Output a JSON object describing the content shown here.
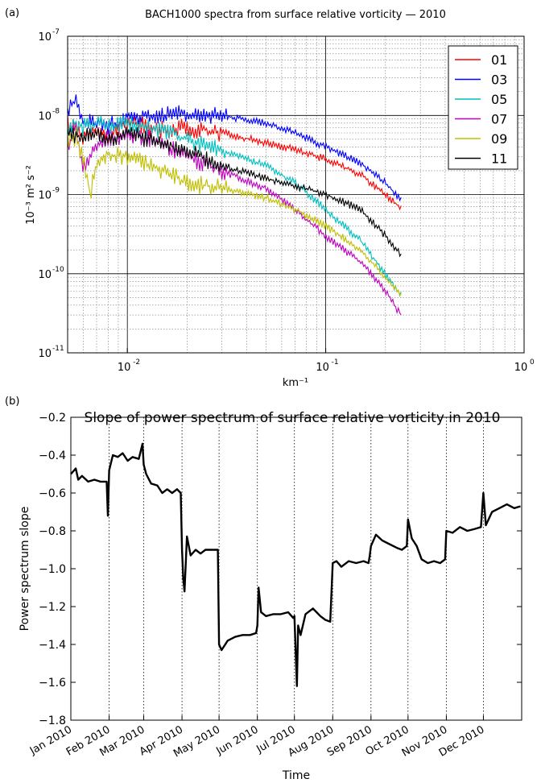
{
  "chart_data": [
    {
      "panel_label": "(a)",
      "type": "line",
      "title": "BACH1000 spectra from surface relative vorticity — 2010",
      "xlabel": "km⁻¹",
      "ylabel": "10⁻³ m² s⁻²",
      "xscale": "log",
      "yscale": "log",
      "xlim": [
        0.005,
        1.0
      ],
      "ylim": [
        1e-11,
        1e-07
      ],
      "xtick_labels": [
        {
          "base": "10",
          "exp": "-2",
          "value": 0.01
        },
        {
          "base": "10",
          "exp": "-1",
          "value": 0.1
        },
        {
          "base": "10",
          "exp": "0",
          "value": 1.0
        }
      ],
      "ytick_labels": [
        {
          "base": "10",
          "exp": "-11",
          "value": 1e-11
        },
        {
          "base": "10",
          "exp": "-10",
          "value": 1e-10
        },
        {
          "base": "10",
          "exp": "-9",
          "value": 1e-09
        },
        {
          "base": "10",
          "exp": "-8",
          "value": 1e-08
        },
        {
          "base": "10",
          "exp": "-7",
          "value": 1e-07
        }
      ],
      "grid": true,
      "legend_position": "top-right",
      "series": [
        {
          "name": "01",
          "color": "#ff0000",
          "k": [
            0.005,
            0.006,
            0.007,
            0.008,
            0.01,
            0.015,
            0.02,
            0.03,
            0.05,
            0.07,
            0.1,
            0.15,
            0.2,
            0.24
          ],
          "values": [
            8e-09,
            5.5e-09,
            7e-09,
            5e-09,
            8.5e-09,
            6.5e-09,
            7e-09,
            6e-09,
            4.5e-09,
            3.7e-09,
            2.8e-09,
            1.8e-09,
            1e-09,
            6.8e-10
          ]
        },
        {
          "name": "03",
          "color": "#0000ff",
          "k": [
            0.005,
            0.0055,
            0.006,
            0.007,
            0.008,
            0.01,
            0.015,
            0.02,
            0.03,
            0.05,
            0.07,
            0.1,
            0.15,
            0.2,
            0.24
          ],
          "values": [
            1.2e-08,
            1.5e-08,
            8.5e-09,
            8e-09,
            7.5e-09,
            9.5e-09,
            1e-08,
            1.05e-08,
            1e-08,
            8e-09,
            6e-09,
            4e-09,
            2.5e-09,
            1.4e-09,
            8.5e-10
          ]
        },
        {
          "name": "05",
          "color": "#00bfbf",
          "k": [
            0.005,
            0.0055,
            0.006,
            0.007,
            0.008,
            0.01,
            0.015,
            0.02,
            0.03,
            0.05,
            0.07,
            0.1,
            0.15,
            0.2,
            0.24
          ],
          "values": [
            7e-09,
            8e-09,
            7e-09,
            8e-09,
            7.5e-09,
            8e-09,
            6.5e-09,
            5e-09,
            3.5e-09,
            2.3e-09,
            1.4e-09,
            6.5e-10,
            2.6e-10,
            1e-10,
            5.3e-11
          ]
        },
        {
          "name": "07",
          "color": "#bf00bf",
          "k": [
            0.005,
            0.0055,
            0.006,
            0.007,
            0.008,
            0.01,
            0.015,
            0.02,
            0.03,
            0.05,
            0.07,
            0.1,
            0.15,
            0.2,
            0.24
          ],
          "values": [
            4e-09,
            7e-09,
            2e-09,
            4.5e-09,
            5e-09,
            6e-09,
            4.5e-09,
            3e-09,
            2e-09,
            1.2e-09,
            6.5e-10,
            3e-10,
            1.4e-10,
            6e-11,
            3e-11
          ]
        },
        {
          "name": "09",
          "color": "#bfbf00",
          "k": [
            0.005,
            0.0055,
            0.006,
            0.0065,
            0.007,
            0.008,
            0.01,
            0.015,
            0.02,
            0.03,
            0.05,
            0.07,
            0.1,
            0.15,
            0.2,
            0.24
          ],
          "values": [
            4.5e-09,
            5.5e-09,
            3e-09,
            1e-09,
            2.5e-09,
            3.2e-09,
            3e-09,
            2e-09,
            1.4e-09,
            1.2e-09,
            9e-10,
            6.5e-10,
            4e-10,
            2e-10,
            9e-11,
            5.5e-11
          ]
        },
        {
          "name": "11",
          "color": "#000000",
          "k": [
            0.005,
            0.006,
            0.007,
            0.008,
            0.01,
            0.015,
            0.02,
            0.03,
            0.05,
            0.07,
            0.1,
            0.15,
            0.2,
            0.24
          ],
          "values": [
            6.5e-09,
            5e-09,
            6e-09,
            5e-09,
            6e-09,
            4.5e-09,
            3.5e-09,
            2.3e-09,
            1.6e-09,
            1.3e-09,
            1e-09,
            6.5e-10,
            3e-10,
            1.7e-10
          ]
        }
      ]
    },
    {
      "panel_label": "(b)",
      "type": "line",
      "title": "Slope of power spectrum of surface relative vorticity in 2010",
      "xlabel": "Time",
      "ylabel": "Power spectrum slope",
      "ylim": [
        -1.8,
        -0.2
      ],
      "y_ticks": [
        -1.8,
        -1.6,
        -1.4,
        -1.2,
        -1.0,
        -0.8,
        -0.6,
        -0.4,
        -0.2
      ],
      "xlim": [
        "2010-01-01",
        "2011-01-01"
      ],
      "x_tick_labels": [
        "Jan 2010",
        "Feb 2010",
        "Mar 2010",
        "Apr 2010",
        "May 2010",
        "Jun 2010",
        "Jul 2010",
        "Aug 2010",
        "Sep 2010",
        "Oct 2010",
        "Nov 2010",
        "Dec 2010"
      ],
      "x_tick_dates": [
        "2010-01-01",
        "2010-02-01",
        "2010-03-01",
        "2010-04-01",
        "2010-05-01",
        "2010-06-01",
        "2010-07-01",
        "2010-08-01",
        "2010-09-01",
        "2010-10-01",
        "2010-11-01",
        "2010-12-01"
      ],
      "grid": "vertical dotted",
      "series": [
        {
          "color": "#000000",
          "x": [
            "2010-01-01",
            "2010-01-05",
            "2010-01-07",
            "2010-01-10",
            "2010-01-15",
            "2010-01-20",
            "2010-01-25",
            "2010-01-30",
            "2010-01-31",
            "2010-02-01",
            "2010-02-04",
            "2010-02-08",
            "2010-02-12",
            "2010-02-16",
            "2010-02-20",
            "2010-02-25",
            "2010-02-28",
            "2010-03-01",
            "2010-03-03",
            "2010-03-07",
            "2010-03-12",
            "2010-03-16",
            "2010-03-20",
            "2010-03-24",
            "2010-03-28",
            "2010-03-31",
            "2010-04-01",
            "2010-04-02",
            "2010-04-03",
            "2010-04-05",
            "2010-04-08",
            "2010-04-12",
            "2010-04-16",
            "2010-04-20",
            "2010-04-25",
            "2010-04-30",
            "2010-05-01",
            "2010-05-03",
            "2010-05-08",
            "2010-05-14",
            "2010-05-20",
            "2010-05-26",
            "2010-05-31",
            "2010-06-01",
            "2010-06-02",
            "2010-06-04",
            "2010-06-08",
            "2010-06-14",
            "2010-06-20",
            "2010-06-26",
            "2010-06-30",
            "2010-07-01",
            "2010-07-03",
            "2010-07-04",
            "2010-07-06",
            "2010-07-10",
            "2010-07-16",
            "2010-07-22",
            "2010-07-26",
            "2010-07-30",
            "2010-08-01",
            "2010-08-04",
            "2010-08-08",
            "2010-08-14",
            "2010-08-20",
            "2010-08-26",
            "2010-08-30",
            "2010-08-31",
            "2010-09-01",
            "2010-09-05",
            "2010-09-10",
            "2010-09-16",
            "2010-09-22",
            "2010-09-26",
            "2010-09-30",
            "2010-10-01",
            "2010-10-04",
            "2010-10-08",
            "2010-10-12",
            "2010-10-17",
            "2010-10-22",
            "2010-10-27",
            "2010-10-31",
            "2010-11-01",
            "2010-11-06",
            "2010-11-12",
            "2010-11-18",
            "2010-11-24",
            "2010-11-29",
            "2010-12-01",
            "2010-12-03",
            "2010-12-08",
            "2010-12-14",
            "2010-12-20",
            "2010-12-26",
            "2010-12-31"
          ],
          "y": [
            -0.5,
            -0.47,
            -0.53,
            -0.51,
            -0.54,
            -0.53,
            -0.54,
            -0.54,
            -0.72,
            -0.48,
            -0.4,
            -0.41,
            -0.39,
            -0.43,
            -0.41,
            -0.42,
            -0.34,
            -0.45,
            -0.5,
            -0.55,
            -0.56,
            -0.6,
            -0.58,
            -0.6,
            -0.58,
            -0.6,
            -0.9,
            -1.05,
            -1.12,
            -0.83,
            -0.93,
            -0.9,
            -0.92,
            -0.9,
            -0.9,
            -0.9,
            -1.4,
            -1.43,
            -1.38,
            -1.36,
            -1.35,
            -1.35,
            -1.34,
            -1.3,
            -1.1,
            -1.23,
            -1.25,
            -1.24,
            -1.24,
            -1.23,
            -1.26,
            -1.25,
            -1.62,
            -1.3,
            -1.35,
            -1.24,
            -1.21,
            -1.25,
            -1.27,
            -1.28,
            -0.97,
            -0.96,
            -0.99,
            -0.96,
            -0.97,
            -0.96,
            -0.97,
            -0.93,
            -0.88,
            -0.82,
            -0.85,
            -0.87,
            -0.89,
            -0.9,
            -0.88,
            -0.74,
            -0.84,
            -0.88,
            -0.95,
            -0.97,
            -0.96,
            -0.97,
            -0.95,
            -0.8,
            -0.81,
            -0.78,
            -0.8,
            -0.79,
            -0.78,
            -0.6,
            -0.77,
            -0.7,
            -0.68,
            -0.66,
            -0.68,
            -0.67
          ]
        }
      ]
    }
  ]
}
